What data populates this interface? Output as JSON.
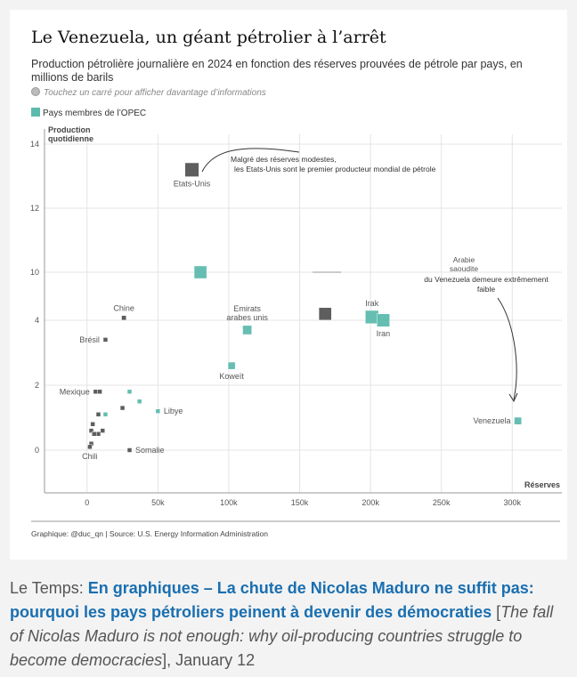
{
  "card": {
    "title": "Le Venezuela, un géant pétrolier à l’arrêt",
    "subtitle": "Production pétrolière journalière en 2024 en fonction des réserves prouvées de pétrole par pays, en millions de barils",
    "hint": "Touchez un carré pour afficher davantage d’informations",
    "legend_label": "Pays membres de l’OPEC",
    "source": "Graphique: @duc_qn | Source: U.S. Energy Information Administration"
  },
  "colors": {
    "opec": "#5dbbad",
    "non_opec": "#555555"
  },
  "chart_data": {
    "type": "scatter",
    "title": "Le Venezuela, un géant pétrolier à l’arrêt",
    "xlabel": "Réserves",
    "ylabel": "Production quotidienne",
    "xlim": [
      -30000,
      335000
    ],
    "x_ticks": [
      0,
      50000,
      100000,
      150000,
      200000,
      250000,
      300000
    ],
    "x_tick_labels": [
      "0",
      "50k",
      "100k",
      "150k",
      "200k",
      "250k",
      "300k"
    ],
    "y_tick_labels": [
      {
        "value": 0,
        "label": "0"
      },
      {
        "value": 2,
        "label": "2"
      },
      {
        "value": 4,
        "label": "4"
      },
      {
        "value": 10,
        "label": "10"
      },
      {
        "value": 12,
        "label": "12"
      },
      {
        "value": 14,
        "label": "14"
      }
    ],
    "grid": true,
    "points": [
      {
        "label": "Etats-Unis",
        "x": 74000,
        "y": 13.2,
        "opec": false
      },
      {
        "label": "Chine",
        "x": 26000,
        "y": 4.3,
        "opec": false
      },
      {
        "label": "Brésil",
        "x": 13000,
        "y": 3.4,
        "opec": false
      },
      {
        "label": "Mexique",
        "x": 6000,
        "y": 1.8,
        "opec": false
      },
      {
        "label": "",
        "x": 9000,
        "y": 1.8,
        "opec": false
      },
      {
        "label": "Emirats arabes unis",
        "x": 113000,
        "y": 3.7,
        "opec": true
      },
      {
        "label": "Koweït",
        "x": 102000,
        "y": 2.6,
        "opec": true
      },
      {
        "label": "Irak",
        "x": 201000,
        "y": 4.4,
        "opec": true
      },
      {
        "label": "Iran",
        "x": 209000,
        "y": 4.0,
        "opec": true
      },
      {
        "label": "",
        "x": 168000,
        "y": 4.8,
        "opec": false
      },
      {
        "label": "",
        "x": 80000,
        "y": 10.0,
        "opec": true
      },
      {
        "label": "Venezuela",
        "x": 304000,
        "y": 0.9,
        "opec": true
      },
      {
        "label": "Libye",
        "x": 50000,
        "y": 1.2,
        "opec": true
      },
      {
        "label": "",
        "x": 30000,
        "y": 1.8,
        "opec": true
      },
      {
        "label": "",
        "x": 37000,
        "y": 1.5,
        "opec": true
      },
      {
        "label": "",
        "x": 25000,
        "y": 1.3,
        "opec": false
      },
      {
        "label": "Somalie",
        "x": 30000,
        "y": 0.0,
        "opec": false
      },
      {
        "label": "",
        "x": 13000,
        "y": 1.1,
        "opec": true
      },
      {
        "label": "",
        "x": 8000,
        "y": 1.1,
        "opec": false
      },
      {
        "label": "",
        "x": 4000,
        "y": 0.8,
        "opec": false
      },
      {
        "label": "",
        "x": 11000,
        "y": 0.6,
        "opec": false
      },
      {
        "label": "",
        "x": 8000,
        "y": 0.5,
        "opec": false
      },
      {
        "label": "",
        "x": 3000,
        "y": 0.6,
        "opec": false
      },
      {
        "label": "",
        "x": 5000,
        "y": 0.5,
        "opec": false
      },
      {
        "label": "",
        "x": 3000,
        "y": 0.2,
        "opec": false
      },
      {
        "label": "Chili",
        "x": 2000,
        "y": 0.1,
        "opec": false
      }
    ],
    "annotations": [
      "Malgré des réserves modestes, les Etats-Unis sont le premier producteur mondial de pétrole",
      "Arabie saoudite",
      "du Venezuela demeure extrêmement faible"
    ]
  },
  "caption": {
    "source": "Le Temps: ",
    "headline": "En graphiques – La chute de Nicolas Maduro ne suffit pas: pourquoi les pays pétroliers peinent à devenir des démocraties",
    "open_bracket": " [",
    "translation": "The fall of Nicolas Maduro is not enough: why oil-producing countries struggle to become democracies",
    "close": "], January 12"
  }
}
